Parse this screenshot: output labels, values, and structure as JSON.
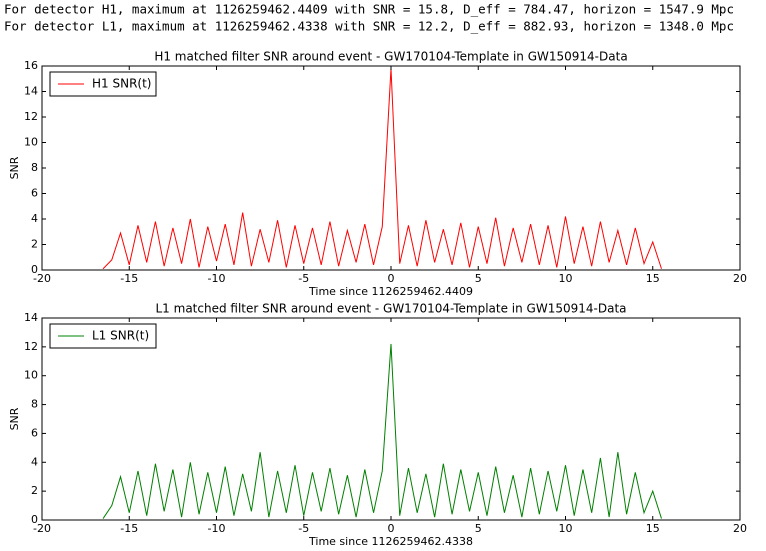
{
  "header": {
    "lines": [
      "For detector H1, maximum at 1126259462.4409 with SNR = 15.8, D_eff = 784.47, horizon = 1547.9 Mpc",
      "For detector L1, maximum at 1126259462.4338 with SNR = 12.2, D_eff = 882.93, horizon = 1348.0 Mpc"
    ]
  },
  "chart_data": [
    {
      "type": "line",
      "title": "H1 matched filter SNR around event - GW170104-Template in GW150914-Data",
      "xlabel": "Time since 1126259462.4409",
      "ylabel": "SNR",
      "x": [
        -16.5,
        -16,
        -15.5,
        -15,
        -14.5,
        -14,
        -13.5,
        -13,
        -12.5,
        -12,
        -11.5,
        -11,
        -10.5,
        -10,
        -9.5,
        -9,
        -8.5,
        -8,
        -7.5,
        -7,
        -6.5,
        -6,
        -5.5,
        -5,
        -4.5,
        -4,
        -3.5,
        -3,
        -2.5,
        -2,
        -1.5,
        -1,
        -0.5,
        0,
        0.5,
        1,
        1.5,
        2,
        2.5,
        3,
        3.5,
        4,
        4.5,
        5,
        5.5,
        6,
        6.5,
        7,
        7.5,
        8,
        8.5,
        9,
        9.5,
        10,
        10.5,
        11,
        11.5,
        12,
        12.5,
        13,
        13.5,
        14,
        14.5,
        15,
        15.5
      ],
      "series": [
        {
          "name": "H1 SNR(t)",
          "color": "#ff0000",
          "values": [
            0.1,
            0.8,
            2.9,
            0.4,
            3.5,
            0.6,
            3.8,
            0.3,
            3.3,
            0.5,
            4.0,
            0.2,
            3.4,
            0.7,
            3.6,
            0.4,
            4.5,
            0.3,
            3.2,
            0.6,
            3.9,
            0.2,
            3.5,
            0.5,
            3.3,
            0.4,
            3.8,
            0.3,
            3.1,
            0.6,
            3.6,
            0.4,
            3.4,
            15.8,
            0.5,
            3.5,
            0.3,
            3.9,
            0.6,
            3.2,
            0.4,
            3.7,
            0.2,
            3.4,
            0.5,
            4.1,
            0.3,
            3.3,
            0.6,
            3.6,
            0.4,
            3.5,
            0.2,
            4.2,
            0.5,
            3.4,
            0.3,
            3.8,
            0.6,
            3.1,
            0.4,
            3.3,
            0.5,
            2.2,
            0.1
          ]
        }
      ],
      "xlim": [
        -20,
        20
      ],
      "xticks": [
        -20,
        -15,
        -10,
        -5,
        0,
        5,
        10,
        15,
        20
      ],
      "ylim": [
        0,
        16
      ],
      "yticks": [
        0,
        2,
        4,
        6,
        8,
        10,
        12,
        14,
        16
      ],
      "legend": "upper left"
    },
    {
      "type": "line",
      "title": "L1 matched filter SNR around event - GW170104-Template in GW150914-Data",
      "xlabel": "Time since 1126259462.4338",
      "ylabel": "SNR",
      "x": [
        -16.5,
        -16,
        -15.5,
        -15,
        -14.5,
        -14,
        -13.5,
        -13,
        -12.5,
        -12,
        -11.5,
        -11,
        -10.5,
        -10,
        -9.5,
        -9,
        -8.5,
        -8,
        -7.5,
        -7,
        -6.5,
        -6,
        -5.5,
        -5,
        -4.5,
        -4,
        -3.5,
        -3,
        -2.5,
        -2,
        -1.5,
        -1,
        -0.5,
        0,
        0.5,
        1,
        1.5,
        2,
        2.5,
        3,
        3.5,
        4,
        4.5,
        5,
        5.5,
        6,
        6.5,
        7,
        7.5,
        8,
        8.5,
        9,
        9.5,
        10,
        10.5,
        11,
        11.5,
        12,
        12.5,
        13,
        13.5,
        14,
        14.5,
        15,
        15.5
      ],
      "series": [
        {
          "name": "L1 SNR(t)",
          "color": "#008000",
          "values": [
            0.1,
            1.0,
            3.0,
            0.5,
            3.4,
            0.3,
            3.9,
            0.6,
            3.5,
            0.2,
            4.0,
            0.4,
            3.3,
            0.5,
            3.7,
            0.3,
            3.2,
            0.6,
            4.7,
            0.2,
            3.4,
            0.5,
            3.8,
            0.3,
            3.3,
            0.6,
            3.6,
            0.4,
            3.1,
            0.2,
            3.5,
            0.5,
            3.4,
            12.2,
            0.3,
            3.6,
            0.5,
            3.2,
            0.2,
            3.9,
            0.4,
            3.5,
            0.6,
            3.3,
            0.3,
            3.7,
            0.5,
            3.1,
            0.2,
            3.6,
            0.4,
            3.4,
            0.6,
            3.8,
            0.3,
            3.5,
            0.5,
            4.3,
            0.2,
            4.7,
            0.4,
            3.3,
            0.5,
            2.0,
            0.1
          ]
        }
      ],
      "xlim": [
        -20,
        20
      ],
      "xticks": [
        -20,
        -15,
        -10,
        -5,
        0,
        5,
        10,
        15,
        20
      ],
      "ylim": [
        0,
        14
      ],
      "yticks": [
        0,
        2,
        4,
        6,
        8,
        10,
        12,
        14
      ],
      "legend": "upper left"
    }
  ]
}
